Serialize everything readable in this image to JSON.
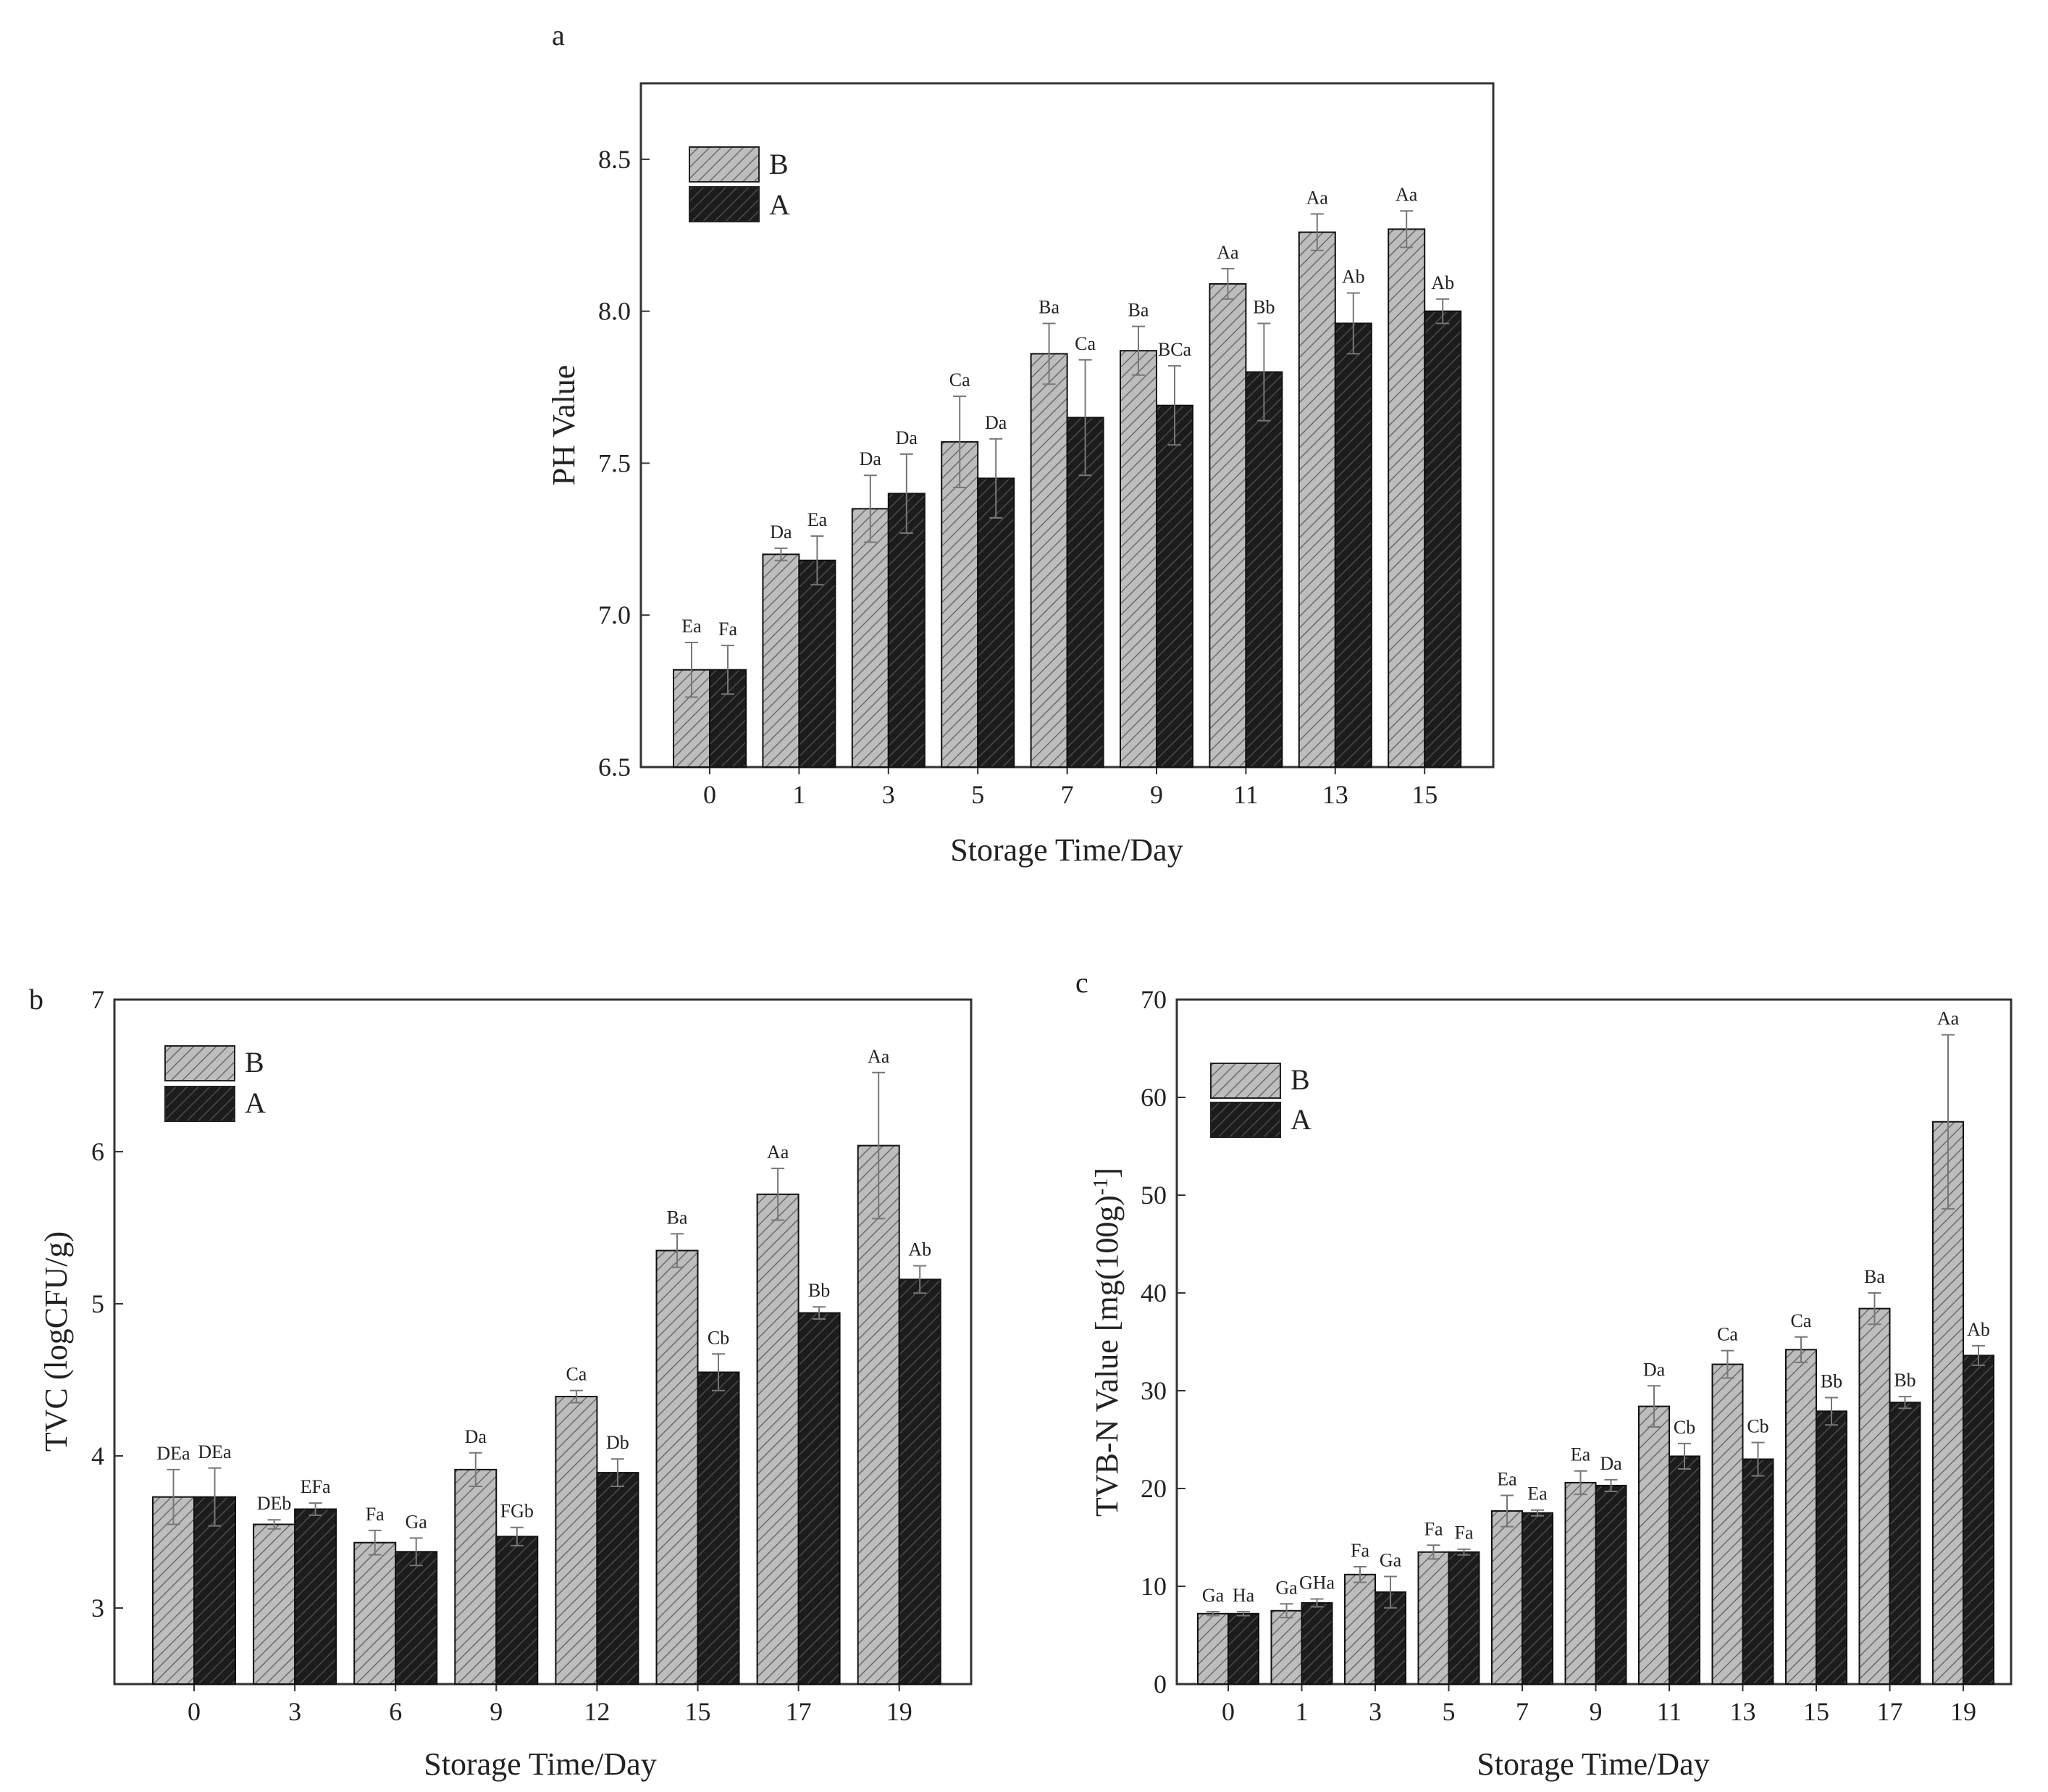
{
  "colors": {
    "series_B_fill": "#bdbdbd",
    "series_B_hatch": "#6b6b6b",
    "series_A_fill": "#1c1c1c",
    "series_A_hatch": "#4a4a4a",
    "frame": "#333333"
  },
  "chart_data": [
    {
      "id": "a",
      "panel_letter": "a",
      "type": "bar",
      "xlabel": "Storage Time/Day",
      "ylabel": "PH Value",
      "ylim": [
        6.5,
        8.75
      ],
      "yticks": [
        "6.5",
        "7.0",
        "7.5",
        "8.0",
        "8.5"
      ],
      "ytick_values": [
        6.5,
        7.0,
        7.5,
        8.0,
        8.5
      ],
      "categories": [
        "0",
        "1",
        "3",
        "5",
        "7",
        "9",
        "11",
        "13",
        "15"
      ],
      "legend": [
        "B",
        "A"
      ],
      "series": [
        {
          "name": "B",
          "values": [
            6.82,
            7.2,
            7.35,
            7.57,
            7.86,
            7.87,
            8.09,
            8.26,
            8.27
          ],
          "errors": [
            0.09,
            0.02,
            0.11,
            0.15,
            0.1,
            0.08,
            0.05,
            0.06,
            0.06
          ],
          "labels": [
            "Ea",
            "Da",
            "Da",
            "Ca",
            "Ba",
            "Ba",
            "Aa",
            "Aa",
            "Aa"
          ]
        },
        {
          "name": "A",
          "values": [
            6.82,
            7.18,
            7.4,
            7.45,
            7.65,
            7.69,
            7.8,
            7.96,
            8.0
          ],
          "errors": [
            0.08,
            0.08,
            0.13,
            0.13,
            0.19,
            0.13,
            0.16,
            0.1,
            0.04
          ],
          "labels": [
            "Fa",
            "Ea",
            "Da",
            "Da",
            "Ca",
            "BCa",
            "Bb",
            "Ab",
            "Ab"
          ]
        }
      ]
    },
    {
      "id": "b",
      "panel_letter": "b",
      "type": "bar",
      "xlabel": "Storage Time/Day",
      "ylabel": "TVC (logCFU/g)",
      "ylim": [
        2.5,
        7
      ],
      "yticks": [
        "3",
        "4",
        "5",
        "6",
        "7"
      ],
      "ytick_values": [
        3,
        4,
        5,
        6,
        7
      ],
      "categories": [
        "0",
        "3",
        "6",
        "9",
        "12",
        "15",
        "17",
        "19"
      ],
      "legend": [
        "B",
        "A"
      ],
      "series": [
        {
          "name": "B",
          "values": [
            3.73,
            3.55,
            3.43,
            3.91,
            4.39,
            5.35,
            5.72,
            6.04
          ],
          "errors": [
            0.18,
            0.03,
            0.08,
            0.11,
            0.04,
            0.11,
            0.17,
            0.48
          ],
          "labels": [
            "DEa",
            "DEb",
            "Fa",
            "Da",
            "Ca",
            "Ba",
            "Aa",
            "Aa"
          ]
        },
        {
          "name": "A",
          "values": [
            3.73,
            3.65,
            3.37,
            3.47,
            3.89,
            4.55,
            4.94,
            5.16
          ],
          "errors": [
            0.19,
            0.04,
            0.09,
            0.06,
            0.09,
            0.12,
            0.04,
            0.09
          ],
          "labels": [
            "DEa",
            "EFa",
            "Ga",
            "FGb",
            "Db",
            "Cb",
            "Bb",
            "Ab"
          ]
        }
      ]
    },
    {
      "id": "c",
      "panel_letter": "c",
      "type": "bar",
      "xlabel": "Storage Time/Day",
      "ylabel": "TVB-N Value [mg(100g)",
      "ylabel_sup": "-1",
      "ylabel_end": "]",
      "ylim": [
        0,
        70
      ],
      "yticks": [
        "0",
        "10",
        "20",
        "30",
        "40",
        "50",
        "60",
        "70"
      ],
      "ytick_values": [
        0,
        10,
        20,
        30,
        40,
        50,
        60,
        70
      ],
      "categories": [
        "0",
        "1",
        "3",
        "5",
        "7",
        "9",
        "11",
        "13",
        "15",
        "17",
        "19"
      ],
      "legend": [
        "B",
        "A"
      ],
      "series": [
        {
          "name": "B",
          "values": [
            7.2,
            7.5,
            11.2,
            13.5,
            17.7,
            20.6,
            28.4,
            32.7,
            34.2,
            38.4,
            57.5
          ],
          "errors": [
            0.2,
            0.7,
            0.8,
            0.7,
            1.6,
            1.2,
            2.1,
            1.4,
            1.3,
            1.6,
            8.9
          ],
          "labels": [
            "Ga",
            "Ga",
            "Fa",
            "Fa",
            "Ea",
            "Ea",
            "Da",
            "Ca",
            "Ca",
            "Ba",
            "Aa"
          ]
        },
        {
          "name": "A",
          "values": [
            7.2,
            8.3,
            9.4,
            13.5,
            17.5,
            20.3,
            23.3,
            23.0,
            27.9,
            28.8,
            33.6
          ],
          "errors": [
            0.2,
            0.4,
            1.6,
            0.3,
            0.3,
            0.6,
            1.3,
            1.7,
            1.4,
            0.6,
            1.0
          ],
          "labels": [
            "Ha",
            "GHa",
            "Ga",
            "Fa",
            "Ea",
            "Da",
            "Cb",
            "Cb",
            "Bb",
            "Bb",
            "Ab"
          ]
        }
      ]
    }
  ]
}
